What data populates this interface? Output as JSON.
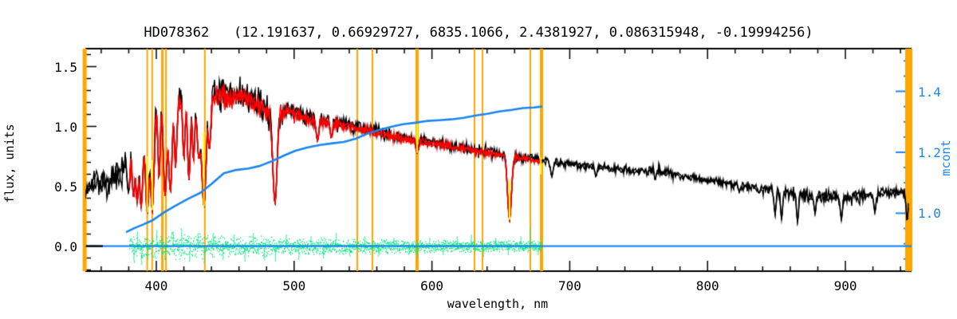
{
  "title": "HD078362   (12.191637, 0.66929727, 6835.1066, 2.4381927, 0.086315948, -0.19994256)",
  "colors": {
    "spectrum": "#000000",
    "model_fit": "#ff0000",
    "residuals": "#00e87c",
    "mcont_curve": "#1c86ee",
    "line_markers": "#ffa500",
    "dip_markers": "#ffff00",
    "background": "#ffffff"
  },
  "chart_data": {
    "type": "line",
    "title": "HD078362   (12.191637, 0.66929727, 6835.1066, 2.4381927, 0.086315948, -0.19994256)",
    "xlabel": "wavelength, nm",
    "ylabel_left": "flux, units",
    "ylabel_right": "mcont",
    "grid": false,
    "axes": {
      "x": {
        "range": [
          348.5,
          948
        ],
        "tick_values": [
          400,
          500,
          600,
          700,
          800,
          900
        ],
        "tick_labels": [
          "400",
          "500",
          "600",
          "700",
          "800",
          "900"
        ],
        "minor_step": 20
      },
      "flux": {
        "range": [
          -0.21,
          1.65
        ],
        "tick_values": [
          0.0,
          0.5,
          1.0,
          1.5
        ],
        "tick_labels": [
          "0.0",
          "0.5",
          "1.0",
          "1.5"
        ],
        "minor_step": 0.1
      },
      "mcont": {
        "range": [
          0.81,
          1.54
        ],
        "tick_values": [
          1.0,
          1.2,
          1.4
        ],
        "tick_labels": [
          "1.0",
          "1.2",
          "1.4"
        ],
        "minor_step": 0.05
      }
    },
    "orange_marker_lines_nm": [
      [
        348.0,
        5
      ],
      [
        393.4,
        2
      ],
      [
        397.0,
        2
      ],
      [
        404.4,
        3
      ],
      [
        407.0,
        2
      ],
      [
        435.2,
        2
      ],
      [
        545.8,
        2
      ],
      [
        556.8,
        2
      ],
      [
        589.2,
        4
      ],
      [
        630.9,
        2
      ],
      [
        636.7,
        2
      ],
      [
        671.4,
        2
      ],
      [
        679.5,
        4
      ],
      [
        946.0,
        9
      ]
    ],
    "black_spectrum": {
      "range_nm": [
        348.5,
        946
      ],
      "anchors_wl_flux_noise": [
        [
          348.5,
          0.44,
          0.06
        ],
        [
          352,
          0.5,
          0.07
        ],
        [
          356,
          0.55,
          0.08
        ],
        [
          360,
          0.52,
          0.08
        ],
        [
          364,
          0.5,
          0.08
        ],
        [
          368,
          0.56,
          0.09
        ],
        [
          372,
          0.6,
          0.1
        ],
        [
          376,
          0.66,
          0.11
        ],
        [
          379,
          0.72,
          0.14
        ],
        [
          382,
          0.85,
          0.18
        ],
        [
          386,
          0.95,
          0.2
        ],
        [
          390,
          1.05,
          0.2
        ],
        [
          394,
          1.18,
          0.18
        ],
        [
          398,
          1.22,
          0.17
        ],
        [
          402,
          1.22,
          0.16
        ],
        [
          406,
          1.18,
          0.16
        ],
        [
          410,
          1.15,
          0.16
        ],
        [
          414,
          1.18,
          0.15
        ],
        [
          418,
          1.25,
          0.13
        ],
        [
          424,
          1.25,
          0.13
        ],
        [
          430,
          1.22,
          0.13
        ],
        [
          436,
          1.15,
          0.14
        ],
        [
          442,
          1.25,
          0.11
        ],
        [
          448,
          1.27,
          0.11
        ],
        [
          454,
          1.25,
          0.11
        ],
        [
          460,
          1.27,
          0.1
        ],
        [
          466,
          1.24,
          0.1
        ],
        [
          472,
          1.22,
          0.1
        ],
        [
          478,
          1.16,
          0.1
        ],
        [
          484,
          1.08,
          0.1
        ],
        [
          490,
          1.13,
          0.08
        ],
        [
          496,
          1.13,
          0.07
        ],
        [
          502,
          1.11,
          0.07
        ],
        [
          510,
          1.08,
          0.06
        ],
        [
          520,
          1.06,
          0.06
        ],
        [
          530,
          1.03,
          0.06
        ],
        [
          540,
          1.01,
          0.05
        ],
        [
          550,
          0.99,
          0.05
        ],
        [
          560,
          0.96,
          0.05
        ],
        [
          570,
          0.93,
          0.04
        ],
        [
          580,
          0.91,
          0.04
        ],
        [
          590,
          0.89,
          0.04
        ],
        [
          600,
          0.87,
          0.04
        ],
        [
          610,
          0.85,
          0.04
        ],
        [
          620,
          0.83,
          0.04
        ],
        [
          630,
          0.81,
          0.04
        ],
        [
          640,
          0.79,
          0.04
        ],
        [
          650,
          0.77,
          0.04
        ],
        [
          660,
          0.75,
          0.04
        ],
        [
          670,
          0.74,
          0.035
        ],
        [
          680,
          0.72,
          0.03
        ],
        [
          690,
          0.7,
          0.03
        ],
        [
          700,
          0.69,
          0.03
        ],
        [
          712,
          0.67,
          0.03
        ],
        [
          724,
          0.655,
          0.03
        ],
        [
          736,
          0.64,
          0.03
        ],
        [
          748,
          0.625,
          0.03
        ],
        [
          757,
          0.625,
          0.035
        ],
        [
          762,
          0.64,
          0.045
        ],
        [
          768,
          0.62,
          0.035
        ],
        [
          776,
          0.6,
          0.03
        ],
        [
          788,
          0.575,
          0.03
        ],
        [
          800,
          0.55,
          0.03
        ],
        [
          812,
          0.53,
          0.03
        ],
        [
          824,
          0.505,
          0.035
        ],
        [
          836,
          0.485,
          0.04
        ],
        [
          848,
          0.465,
          0.045
        ],
        [
          860,
          0.44,
          0.05
        ],
        [
          872,
          0.425,
          0.05
        ],
        [
          884,
          0.415,
          0.05
        ],
        [
          896,
          0.41,
          0.05
        ],
        [
          908,
          0.415,
          0.045
        ],
        [
          918,
          0.425,
          0.04
        ],
        [
          928,
          0.44,
          0.04
        ],
        [
          936,
          0.455,
          0.04
        ],
        [
          942,
          0.45,
          0.04
        ],
        [
          946,
          0.4,
          0.03
        ]
      ],
      "absorption_dips_wl_flux_sigma": [
        [
          379.8,
          0.45,
          1.0
        ],
        [
          383.5,
          0.4,
          1.0
        ],
        [
          386.1,
          0.36,
          1.0
        ],
        [
          389.0,
          0.32,
          1.2
        ],
        [
          393.4,
          0.27,
          1.4
        ],
        [
          397.0,
          0.3,
          1.4
        ],
        [
          402.0,
          0.55,
          0.8
        ],
        [
          406.4,
          0.42,
          1.2
        ],
        [
          410.2,
          0.45,
          1.2
        ],
        [
          414.0,
          0.65,
          0.8
        ],
        [
          420.0,
          0.72,
          0.8
        ],
        [
          423.7,
          0.55,
          1.0
        ],
        [
          427.0,
          0.7,
          0.8
        ],
        [
          430.8,
          0.75,
          1.2
        ],
        [
          434.5,
          0.33,
          1.5
        ],
        [
          438.5,
          0.8,
          0.8
        ],
        [
          486.1,
          0.36,
          1.5
        ],
        [
          517.0,
          0.88,
          1.0
        ],
        [
          527.0,
          0.9,
          0.8
        ],
        [
          589.3,
          0.78,
          1.0
        ],
        [
          656.3,
          0.22,
          1.4
        ],
        [
          687.0,
          0.58,
          0.9
        ],
        [
          719.0,
          0.58,
          0.7
        ],
        [
          762.0,
          0.55,
          0.7
        ],
        [
          823.0,
          0.45,
          0.7
        ],
        [
          849.0,
          0.26,
          0.7
        ],
        [
          853.7,
          0.22,
          0.7
        ],
        [
          865.3,
          0.2,
          0.7
        ],
        [
          878.0,
          0.27,
          0.7
        ],
        [
          897.1,
          0.22,
          0.7
        ],
        [
          921.4,
          0.28,
          0.7
        ],
        [
          944.8,
          0.2,
          0.6
        ]
      ]
    },
    "red_model_fit": {
      "range_nm": [
        380,
        679.5
      ],
      "scale": 0.985,
      "noise_scale": 0.7
    },
    "green_residuals": {
      "range_nm": [
        380,
        679.5
      ],
      "zero_level_flux": 0.0,
      "amplitude_anchors_wl_amp": [
        [
          380,
          0.05
        ],
        [
          384,
          0.09
        ],
        [
          390,
          0.11
        ],
        [
          396,
          0.1
        ],
        [
          402,
          0.1
        ],
        [
          410,
          0.11
        ],
        [
          418,
          0.12
        ],
        [
          426,
          0.1
        ],
        [
          434,
          0.1
        ],
        [
          442,
          0.09
        ],
        [
          452,
          0.08
        ],
        [
          462,
          0.09
        ],
        [
          472,
          0.085
        ],
        [
          482,
          0.08
        ],
        [
          492,
          0.075
        ],
        [
          502,
          0.07
        ],
        [
          514,
          0.07
        ],
        [
          526,
          0.065
        ],
        [
          538,
          0.065
        ],
        [
          550,
          0.06
        ],
        [
          562,
          0.06
        ],
        [
          575,
          0.055
        ],
        [
          588,
          0.055
        ],
        [
          600,
          0.05
        ],
        [
          612,
          0.05
        ],
        [
          624,
          0.05
        ],
        [
          636,
          0.05
        ],
        [
          648,
          0.045
        ],
        [
          658,
          0.05
        ],
        [
          668,
          0.05
        ],
        [
          676,
          0.045
        ],
        [
          679.5,
          0.04
        ]
      ],
      "spikes_wl_flux": [
        [
          383.5,
          -0.14
        ],
        [
          386,
          0.13
        ],
        [
          389,
          -0.15
        ],
        [
          393.4,
          -0.12
        ],
        [
          400,
          0.14
        ],
        [
          406,
          -0.12
        ],
        [
          412,
          0.13
        ],
        [
          418,
          0.15
        ],
        [
          424,
          -0.13
        ],
        [
          430,
          0.12
        ],
        [
          434.5,
          -0.14
        ],
        [
          441,
          0.11
        ],
        [
          448,
          -0.12
        ],
        [
          456,
          0.1
        ],
        [
          464,
          -0.13
        ],
        [
          470,
          0.11
        ],
        [
          478,
          -0.11
        ],
        [
          486.1,
          -0.13
        ],
        [
          494,
          0.1
        ],
        [
          503,
          -0.11
        ],
        [
          512,
          0.09
        ],
        [
          521,
          -0.1
        ],
        [
          530,
          0.12
        ],
        [
          540,
          -0.09
        ],
        [
          551,
          0.09
        ],
        [
          561,
          -0.09
        ],
        [
          572,
          0.08
        ],
        [
          583,
          -0.08
        ],
        [
          589.3,
          -0.1
        ],
        [
          598,
          0.08
        ],
        [
          608,
          -0.08
        ],
        [
          618,
          0.09
        ],
        [
          628,
          0.1
        ],
        [
          637,
          -0.09
        ],
        [
          646,
          0.07
        ],
        [
          655,
          -0.08
        ],
        [
          664,
          0.09
        ],
        [
          671,
          0.17
        ],
        [
          677,
          -0.07
        ]
      ]
    },
    "blue_mcont_curve_wl_mcont": [
      [
        378.6,
        0.939
      ],
      [
        384,
        0.951
      ],
      [
        390,
        0.962
      ],
      [
        397,
        0.976
      ],
      [
        406,
        1.004
      ],
      [
        414,
        1.025
      ],
      [
        423,
        1.047
      ],
      [
        432,
        1.067
      ],
      [
        440,
        1.096
      ],
      [
        449,
        1.131
      ],
      [
        458,
        1.142
      ],
      [
        467,
        1.147
      ],
      [
        475,
        1.155
      ],
      [
        484,
        1.171
      ],
      [
        493,
        1.19
      ],
      [
        501,
        1.205
      ],
      [
        510,
        1.216
      ],
      [
        519,
        1.224
      ],
      [
        527,
        1.229
      ],
      [
        536,
        1.234
      ],
      [
        545,
        1.245
      ],
      [
        553,
        1.261
      ],
      [
        562,
        1.274
      ],
      [
        571,
        1.284
      ],
      [
        579,
        1.292
      ],
      [
        588,
        1.297
      ],
      [
        597,
        1.303
      ],
      [
        605,
        1.305
      ],
      [
        614,
        1.308
      ],
      [
        623,
        1.313
      ],
      [
        632,
        1.321
      ],
      [
        640,
        1.326
      ],
      [
        649,
        1.334
      ],
      [
        658,
        1.339
      ],
      [
        666,
        1.345
      ],
      [
        674,
        1.347
      ],
      [
        679.5,
        1.35
      ]
    ],
    "blue_zero_line_flux": 0.0,
    "yellow_dip_markers_wl_f1_f2": [
      [
        393.4,
        0.28,
        0.75
      ],
      [
        397.0,
        0.3,
        0.72
      ],
      [
        434.5,
        0.33,
        0.95
      ],
      [
        589.3,
        0.78,
        1.02
      ],
      [
        656.3,
        0.22,
        0.55
      ],
      [
        679.0,
        0.6,
        0.74
      ]
    ],
    "seed": 7
  }
}
